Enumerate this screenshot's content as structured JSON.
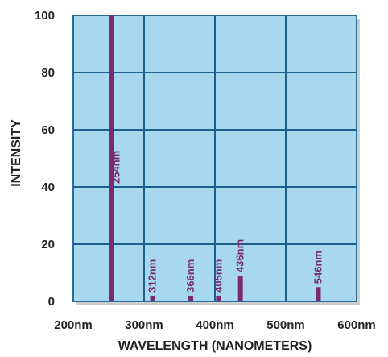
{
  "chart_data": {
    "type": "bar",
    "xlabel": "WAVELENGTH (NANOMETERS)",
    "ylabel": "INTENSITY",
    "xlim": [
      200,
      600
    ],
    "ylim": [
      0,
      100
    ],
    "x_ticks": [
      "200nm",
      "300nm",
      "400nm",
      "500nm",
      "600nm"
    ],
    "y_ticks": [
      "0",
      "20",
      "40",
      "60",
      "80",
      "100"
    ],
    "grid": true,
    "colors": {
      "background": "#a8d8ee",
      "grid": "#1e5f8c",
      "frame": "#2a6d98",
      "bar": "#7a2a6e",
      "text": "#222222"
    },
    "bars": [
      {
        "x": 254,
        "y": 100,
        "label": "254nm"
      },
      {
        "x": 312,
        "y": 2,
        "label": "312nm"
      },
      {
        "x": 366,
        "y": 2,
        "label": "366nm"
      },
      {
        "x": 405,
        "y": 2,
        "label": "405nm"
      },
      {
        "x": 436,
        "y": 9,
        "label": "436nm"
      },
      {
        "x": 546,
        "y": 5,
        "label": "546nm"
      }
    ]
  }
}
